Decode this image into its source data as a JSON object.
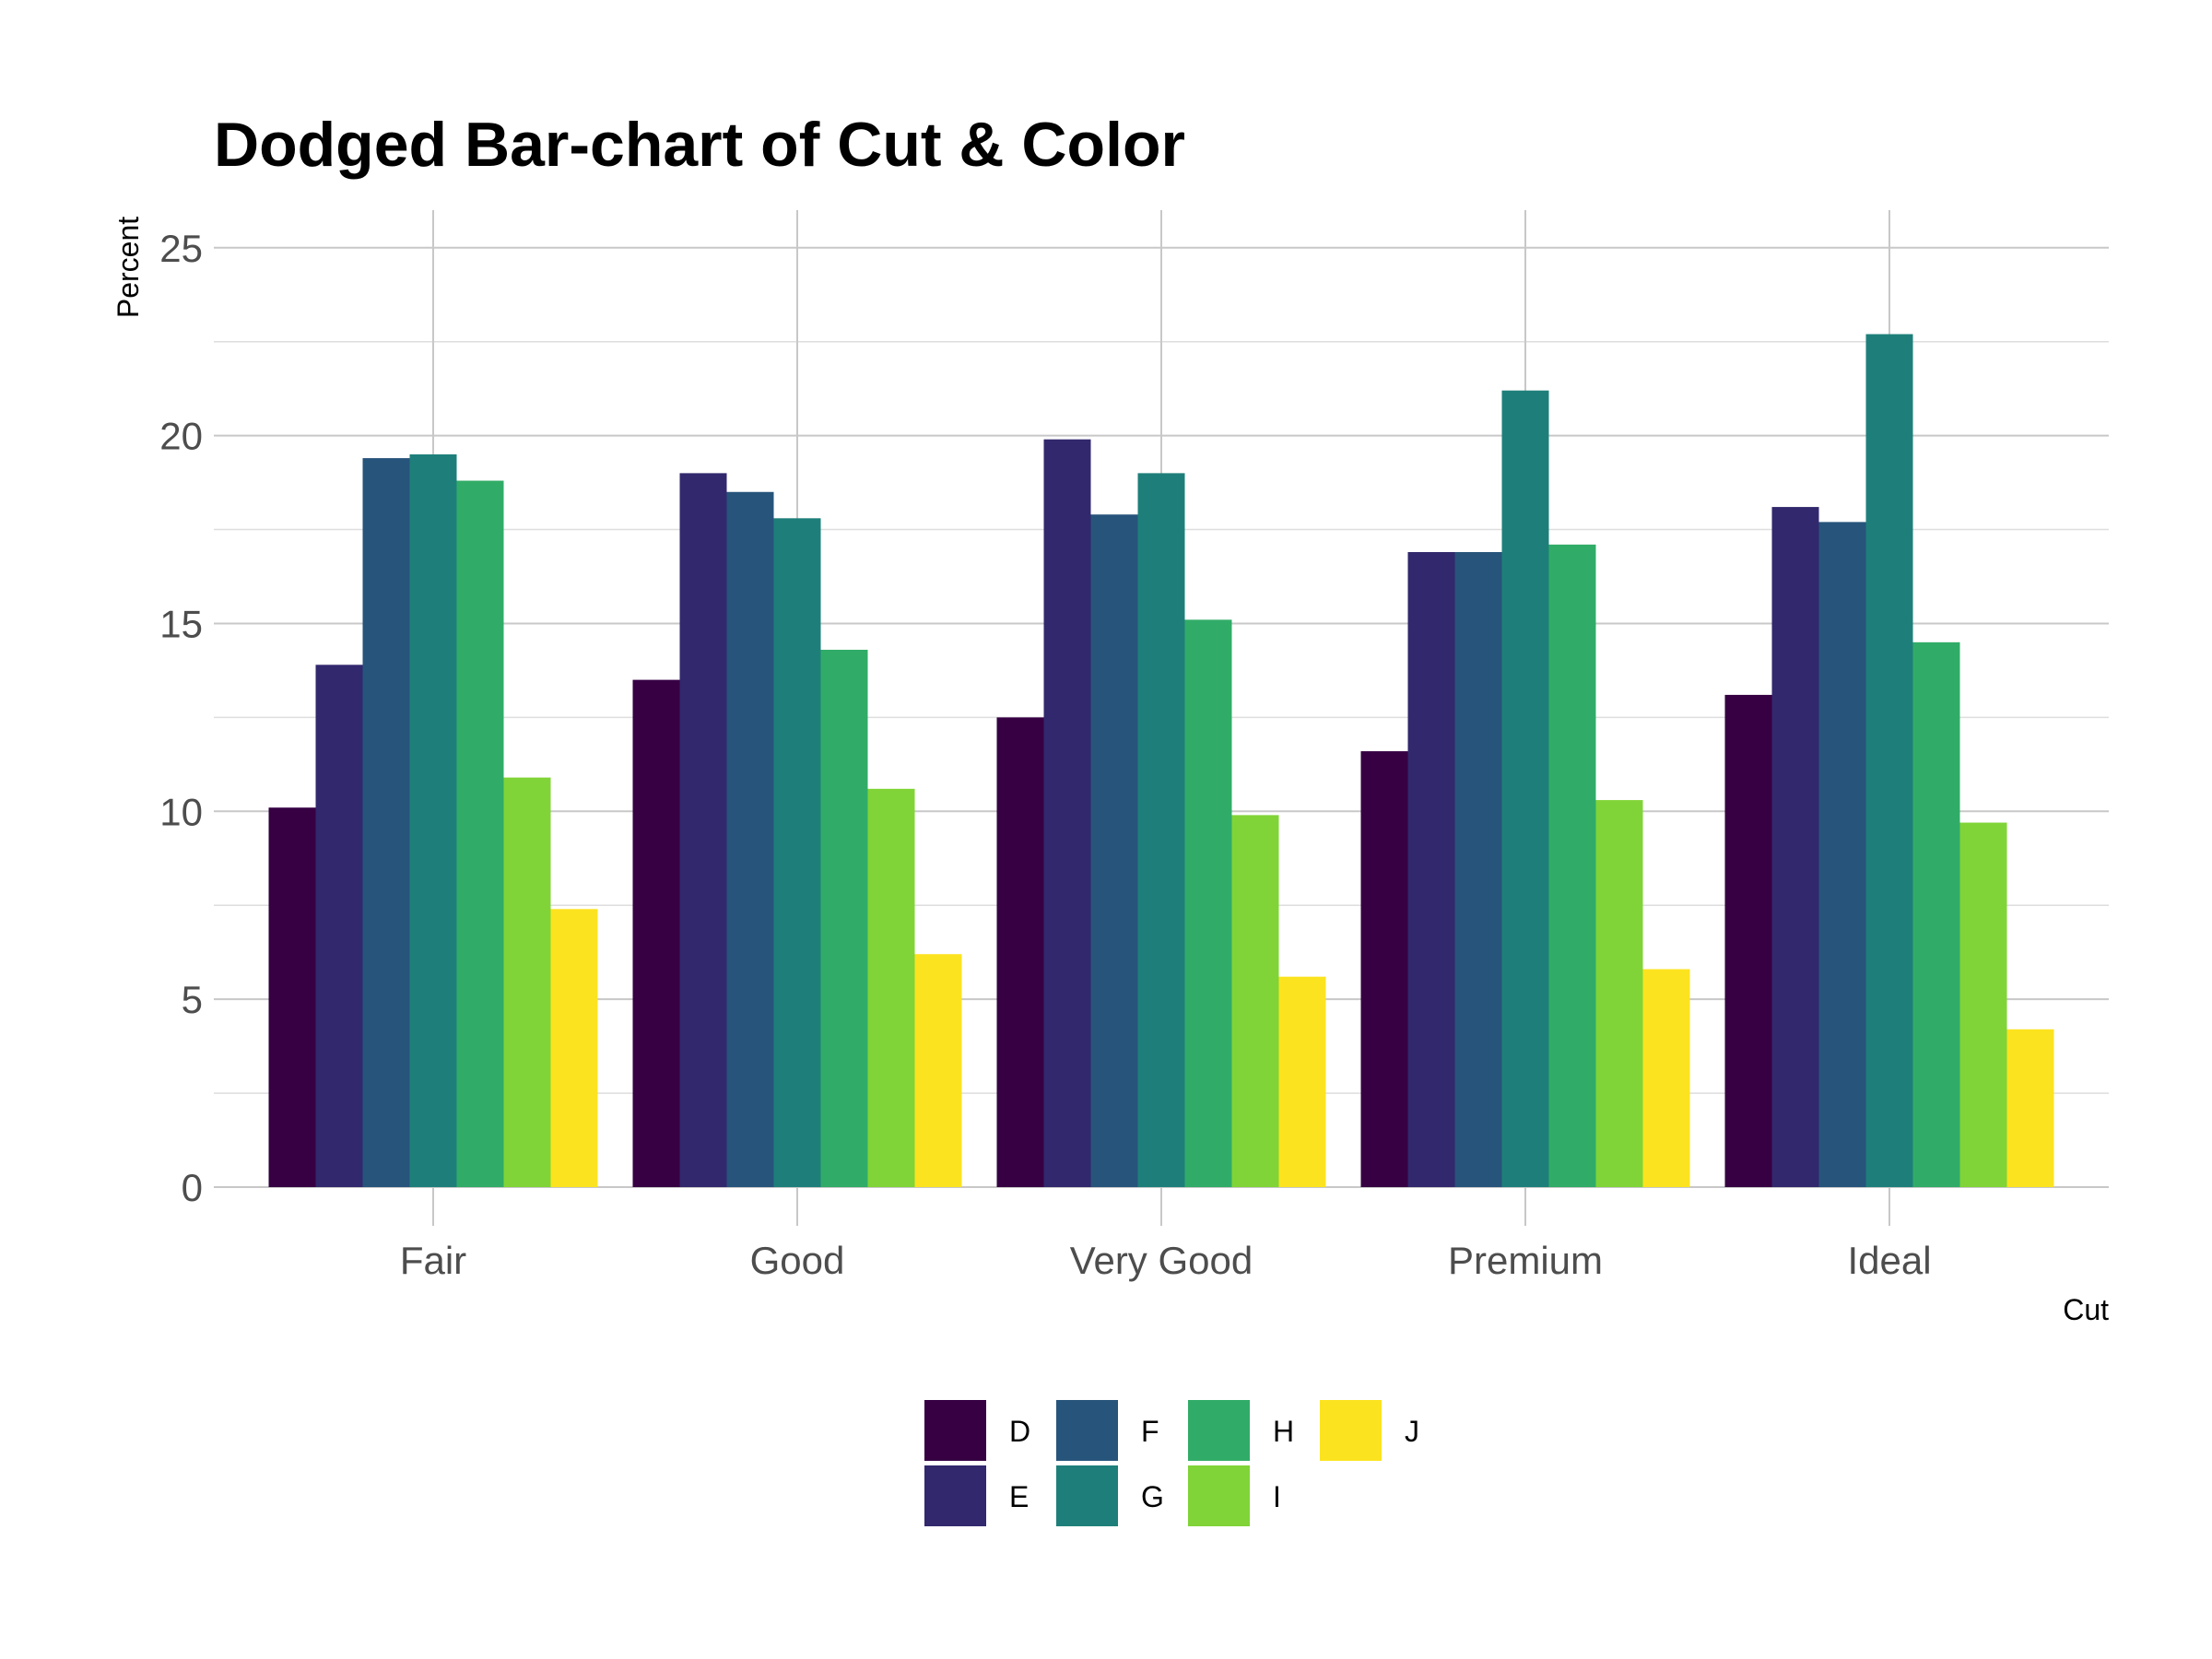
{
  "chart_data": {
    "type": "bar",
    "title": "Dodged Bar-chart of Cut & Color",
    "xlabel": "Cut",
    "ylabel": "Percent",
    "categories": [
      "Fair",
      "Good",
      "Very Good",
      "Premium",
      "Ideal"
    ],
    "ylim": [
      0,
      26
    ],
    "yticks": [
      0,
      5,
      10,
      15,
      20,
      25
    ],
    "grid": true,
    "legend_position": "bottom",
    "series": [
      {
        "name": "D",
        "color": "#360043",
        "values": [
          10.1,
          13.5,
          12.5,
          11.6,
          13.1
        ]
      },
      {
        "name": "E",
        "color": "#32286D",
        "values": [
          13.9,
          19.0,
          19.9,
          16.9,
          18.1
        ]
      },
      {
        "name": "F",
        "color": "#27547B",
        "values": [
          19.4,
          18.5,
          17.9,
          16.9,
          17.7
        ]
      },
      {
        "name": "G",
        "color": "#1E7F7A",
        "values": [
          19.5,
          17.8,
          19.0,
          21.2,
          22.7
        ]
      },
      {
        "name": "H",
        "color": "#31AC68",
        "values": [
          18.8,
          14.3,
          15.1,
          17.1,
          14.5
        ]
      },
      {
        "name": "I",
        "color": "#80D437",
        "values": [
          10.9,
          10.6,
          9.9,
          10.3,
          9.7
        ]
      },
      {
        "name": "J",
        "color": "#FCE31F",
        "values": [
          7.4,
          6.2,
          5.6,
          5.8,
          4.2
        ]
      }
    ]
  }
}
